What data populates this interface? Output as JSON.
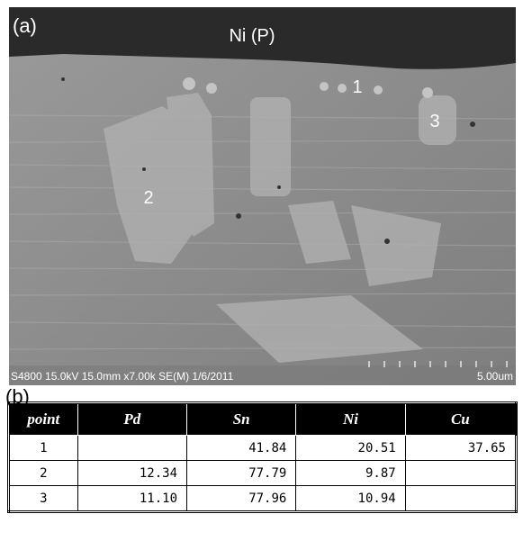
{
  "figure": {
    "panel_a": {
      "label": "(a)",
      "annotations": [
        "Ni (P)",
        "1",
        "2",
        "3"
      ],
      "info_bar": "S4800 15.0kV 15.0mm x7.00k SE(M) 1/6/2011",
      "scale_bar": "5.00um"
    },
    "panel_b": {
      "label": "(b)",
      "table": {
        "header": [
          "point",
          "Pd",
          "Sn",
          "Ni",
          "Cu"
        ],
        "rows": [
          [
            "1",
            null,
            "41.84",
            "20.51",
            "37.65"
          ],
          [
            "2",
            "12.34",
            "77.79",
            "9.87",
            null
          ],
          [
            "3",
            "11.10",
            "77.96",
            "10.94",
            null
          ]
        ]
      }
    }
  }
}
